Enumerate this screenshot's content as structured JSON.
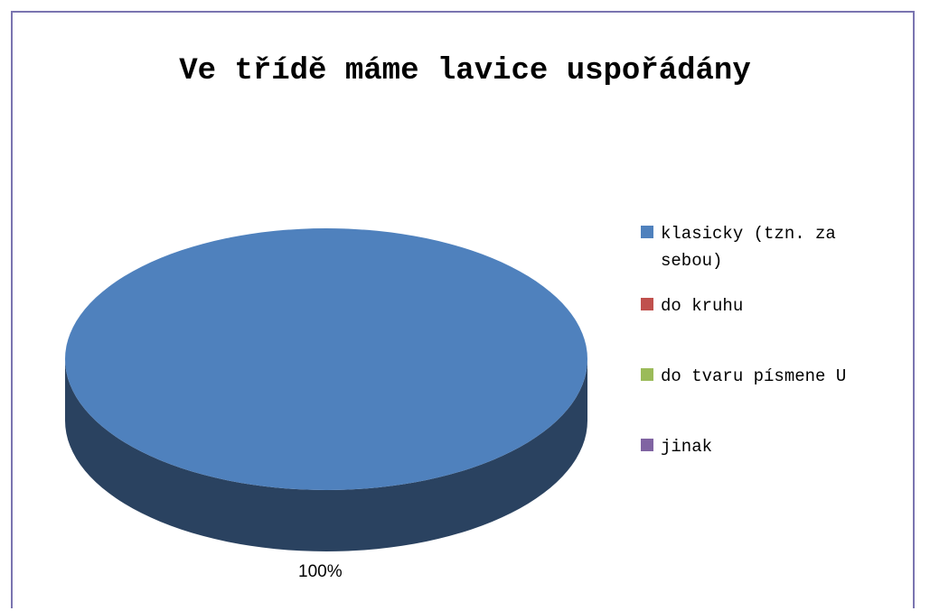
{
  "chart_data": {
    "type": "pie",
    "title": "Ve třídě máme lavice uspořádány",
    "categories": [
      "klasicky (tzn. za sebou)",
      "do kruhu",
      "do tvaru písmene U",
      "jinak"
    ],
    "values": [
      100,
      0,
      0,
      0
    ],
    "data_labels": [
      "100%"
    ],
    "colors": [
      "#4f81bd",
      "#c0504d",
      "#9bbb59",
      "#8064a2"
    ],
    "side_color": "#2a4260",
    "legend_position": "right",
    "style": "3d"
  }
}
